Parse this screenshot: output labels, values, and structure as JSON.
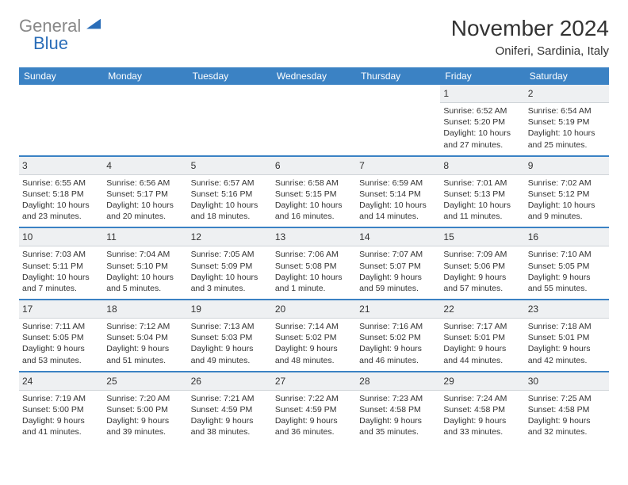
{
  "logo": {
    "word1": "General",
    "word2": "Blue",
    "triangle_color": "#2a6db8",
    "gray_color": "#888888",
    "blue_color": "#2a6db8"
  },
  "header": {
    "title": "November 2024",
    "subtitle": "Oniferi, Sardinia, Italy"
  },
  "styling": {
    "header_bg": "#3b82c4",
    "header_text": "#ffffff",
    "daynum_bg": "#eef0f2",
    "border_color": "#3b82c4",
    "text_color": "#333333",
    "title_fontsize": 28,
    "subtitle_fontsize": 15,
    "weekday_fontsize": 12,
    "daynum_fontsize": 12,
    "info_fontsize": 10.5,
    "page_bg": "#ffffff"
  },
  "weekdays": [
    "Sunday",
    "Monday",
    "Tuesday",
    "Wednesday",
    "Thursday",
    "Friday",
    "Saturday"
  ],
  "weeks": [
    [
      {
        "n": "",
        "lines": []
      },
      {
        "n": "",
        "lines": []
      },
      {
        "n": "",
        "lines": []
      },
      {
        "n": "",
        "lines": []
      },
      {
        "n": "",
        "lines": []
      },
      {
        "n": "1",
        "lines": [
          "Sunrise: 6:52 AM",
          "Sunset: 5:20 PM",
          "Daylight: 10 hours and 27 minutes."
        ]
      },
      {
        "n": "2",
        "lines": [
          "Sunrise: 6:54 AM",
          "Sunset: 5:19 PM",
          "Daylight: 10 hours and 25 minutes."
        ]
      }
    ],
    [
      {
        "n": "3",
        "lines": [
          "Sunrise: 6:55 AM",
          "Sunset: 5:18 PM",
          "Daylight: 10 hours and 23 minutes."
        ]
      },
      {
        "n": "4",
        "lines": [
          "Sunrise: 6:56 AM",
          "Sunset: 5:17 PM",
          "Daylight: 10 hours and 20 minutes."
        ]
      },
      {
        "n": "5",
        "lines": [
          "Sunrise: 6:57 AM",
          "Sunset: 5:16 PM",
          "Daylight: 10 hours and 18 minutes."
        ]
      },
      {
        "n": "6",
        "lines": [
          "Sunrise: 6:58 AM",
          "Sunset: 5:15 PM",
          "Daylight: 10 hours and 16 minutes."
        ]
      },
      {
        "n": "7",
        "lines": [
          "Sunrise: 6:59 AM",
          "Sunset: 5:14 PM",
          "Daylight: 10 hours and 14 minutes."
        ]
      },
      {
        "n": "8",
        "lines": [
          "Sunrise: 7:01 AM",
          "Sunset: 5:13 PM",
          "Daylight: 10 hours and 11 minutes."
        ]
      },
      {
        "n": "9",
        "lines": [
          "Sunrise: 7:02 AM",
          "Sunset: 5:12 PM",
          "Daylight: 10 hours and 9 minutes."
        ]
      }
    ],
    [
      {
        "n": "10",
        "lines": [
          "Sunrise: 7:03 AM",
          "Sunset: 5:11 PM",
          "Daylight: 10 hours and 7 minutes."
        ]
      },
      {
        "n": "11",
        "lines": [
          "Sunrise: 7:04 AM",
          "Sunset: 5:10 PM",
          "Daylight: 10 hours and 5 minutes."
        ]
      },
      {
        "n": "12",
        "lines": [
          "Sunrise: 7:05 AM",
          "Sunset: 5:09 PM",
          "Daylight: 10 hours and 3 minutes."
        ]
      },
      {
        "n": "13",
        "lines": [
          "Sunrise: 7:06 AM",
          "Sunset: 5:08 PM",
          "Daylight: 10 hours and 1 minute."
        ]
      },
      {
        "n": "14",
        "lines": [
          "Sunrise: 7:07 AM",
          "Sunset: 5:07 PM",
          "Daylight: 9 hours and 59 minutes."
        ]
      },
      {
        "n": "15",
        "lines": [
          "Sunrise: 7:09 AM",
          "Sunset: 5:06 PM",
          "Daylight: 9 hours and 57 minutes."
        ]
      },
      {
        "n": "16",
        "lines": [
          "Sunrise: 7:10 AM",
          "Sunset: 5:05 PM",
          "Daylight: 9 hours and 55 minutes."
        ]
      }
    ],
    [
      {
        "n": "17",
        "lines": [
          "Sunrise: 7:11 AM",
          "Sunset: 5:05 PM",
          "Daylight: 9 hours and 53 minutes."
        ]
      },
      {
        "n": "18",
        "lines": [
          "Sunrise: 7:12 AM",
          "Sunset: 5:04 PM",
          "Daylight: 9 hours and 51 minutes."
        ]
      },
      {
        "n": "19",
        "lines": [
          "Sunrise: 7:13 AM",
          "Sunset: 5:03 PM",
          "Daylight: 9 hours and 49 minutes."
        ]
      },
      {
        "n": "20",
        "lines": [
          "Sunrise: 7:14 AM",
          "Sunset: 5:02 PM",
          "Daylight: 9 hours and 48 minutes."
        ]
      },
      {
        "n": "21",
        "lines": [
          "Sunrise: 7:16 AM",
          "Sunset: 5:02 PM",
          "Daylight: 9 hours and 46 minutes."
        ]
      },
      {
        "n": "22",
        "lines": [
          "Sunrise: 7:17 AM",
          "Sunset: 5:01 PM",
          "Daylight: 9 hours and 44 minutes."
        ]
      },
      {
        "n": "23",
        "lines": [
          "Sunrise: 7:18 AM",
          "Sunset: 5:01 PM",
          "Daylight: 9 hours and 42 minutes."
        ]
      }
    ],
    [
      {
        "n": "24",
        "lines": [
          "Sunrise: 7:19 AM",
          "Sunset: 5:00 PM",
          "Daylight: 9 hours and 41 minutes."
        ]
      },
      {
        "n": "25",
        "lines": [
          "Sunrise: 7:20 AM",
          "Sunset: 5:00 PM",
          "Daylight: 9 hours and 39 minutes."
        ]
      },
      {
        "n": "26",
        "lines": [
          "Sunrise: 7:21 AM",
          "Sunset: 4:59 PM",
          "Daylight: 9 hours and 38 minutes."
        ]
      },
      {
        "n": "27",
        "lines": [
          "Sunrise: 7:22 AM",
          "Sunset: 4:59 PM",
          "Daylight: 9 hours and 36 minutes."
        ]
      },
      {
        "n": "28",
        "lines": [
          "Sunrise: 7:23 AM",
          "Sunset: 4:58 PM",
          "Daylight: 9 hours and 35 minutes."
        ]
      },
      {
        "n": "29",
        "lines": [
          "Sunrise: 7:24 AM",
          "Sunset: 4:58 PM",
          "Daylight: 9 hours and 33 minutes."
        ]
      },
      {
        "n": "30",
        "lines": [
          "Sunrise: 7:25 AM",
          "Sunset: 4:58 PM",
          "Daylight: 9 hours and 32 minutes."
        ]
      }
    ]
  ]
}
